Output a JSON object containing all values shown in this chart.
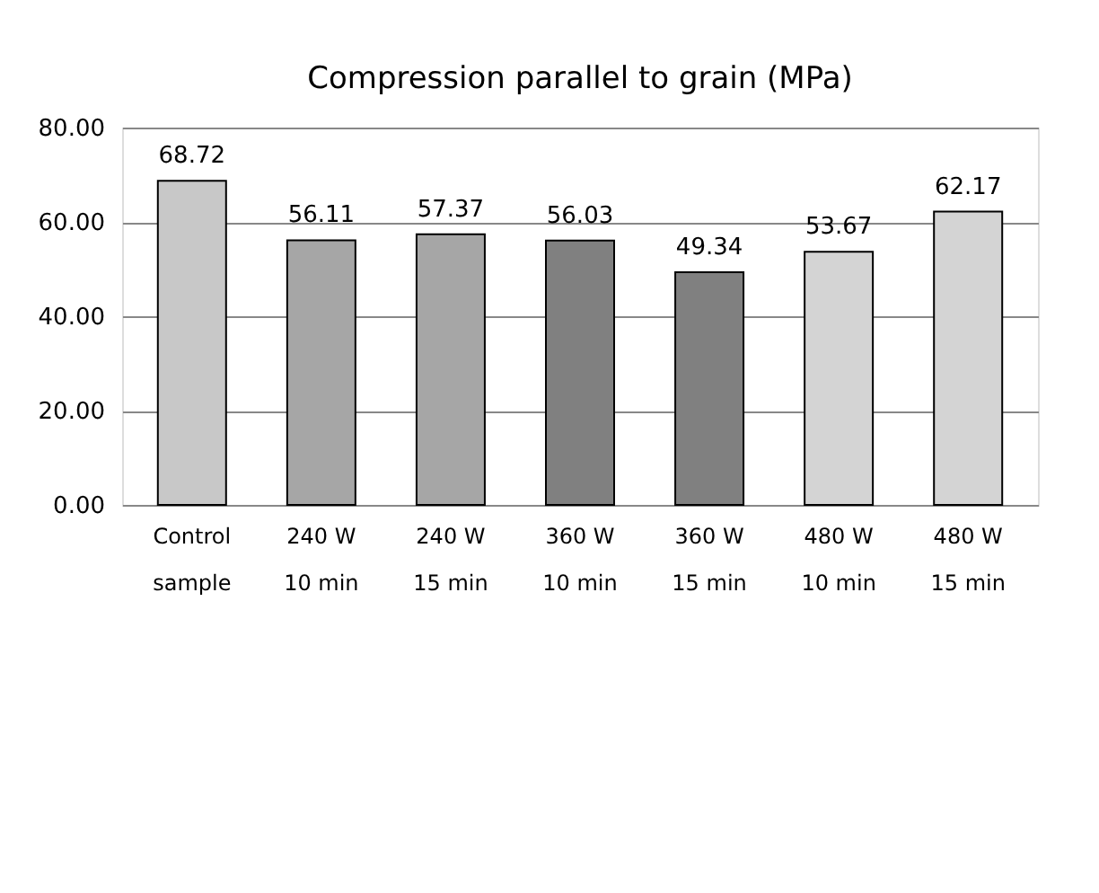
{
  "chart_data": {
    "type": "bar",
    "title": "Compression parallel to grain (MPa)",
    "categories": [
      "Control\nsample",
      "240 W\n10 min",
      "240 W\n15 min",
      "360 W\n10 min",
      "360 W\n15 min",
      "480 W\n10 min",
      "480 W\n15 min"
    ],
    "values": [
      68.72,
      56.11,
      57.37,
      56.03,
      49.34,
      53.67,
      62.17
    ],
    "colors": [
      "#c8c8c8",
      "#a6a6a6",
      "#a6a6a6",
      "#808080",
      "#808080",
      "#d4d4d4",
      "#d4d4d4"
    ],
    "value_labels": [
      "68.72",
      "56.11",
      "57.37",
      "56.03",
      "49.34",
      "53.67",
      "62.17"
    ],
    "ylim": [
      0,
      80
    ],
    "yticks": [
      {
        "value": 0,
        "label": "0.00"
      },
      {
        "value": 20,
        "label": "20.00"
      },
      {
        "value": 40,
        "label": "40.00"
      },
      {
        "value": 60,
        "label": "60.00"
      },
      {
        "value": 80,
        "label": "80.00"
      }
    ],
    "grid": "y"
  }
}
